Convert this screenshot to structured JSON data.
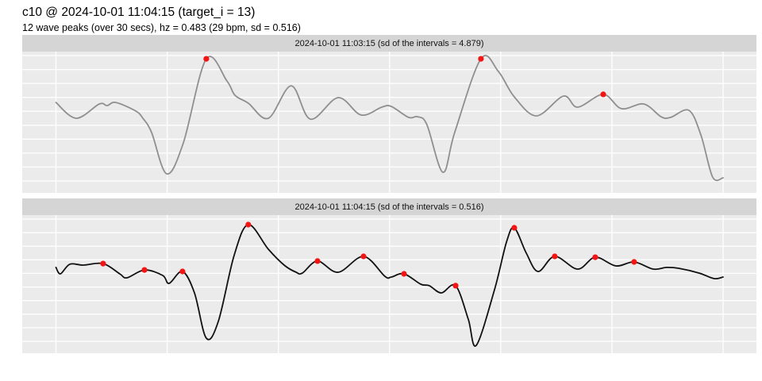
{
  "header": {
    "title": "c10 @ 2024-10-01 11:04:15 (target_i = 13)",
    "subtitle": "12 wave peaks (over 30 secs), hz = 0.483 (29 bpm, sd = 0.516)"
  },
  "colors": {
    "panel_bg": "#ebebeb",
    "strip_bg": "#d5d5d5",
    "grid": "#ffffff",
    "top_line": "#8f8f8f",
    "bottom_line": "#111111",
    "peak_dot": "#f51414",
    "text": "#000000"
  },
  "chart_data": [
    {
      "type": "line",
      "title": "2024-10-01 11:03:15 (sd of the intervals = 4.879)",
      "xlabel": "",
      "ylabel": "",
      "x_units": "seconds",
      "y_units": "normalized amplitude (0 = panel bottom, 1 = panel top)",
      "xlim": [
        0,
        30
      ],
      "x_gridlines_sec": [
        0,
        5,
        10,
        15,
        20,
        25,
        30
      ],
      "h_gridline_count": 10,
      "grid": true,
      "legend": "none",
      "line_color_key": "top_line",
      "points": [
        [
          0,
          0.64
        ],
        [
          0.91,
          0.528
        ],
        [
          1.95,
          0.629
        ],
        [
          2.3,
          0.618
        ],
        [
          2.69,
          0.64
        ],
        [
          3.59,
          0.579
        ],
        [
          3.91,
          0.528
        ],
        [
          4.3,
          0.427
        ],
        [
          4.98,
          0.135
        ],
        [
          5.73,
          0.354
        ],
        [
          6.76,
          0.949
        ],
        [
          7.69,
          0.792
        ],
        [
          8.05,
          0.691
        ],
        [
          8.65,
          0.635
        ],
        [
          9.55,
          0.528
        ],
        [
          10.58,
          0.758
        ],
        [
          11.44,
          0.522
        ],
        [
          12.69,
          0.674
        ],
        [
          13.72,
          0.551
        ],
        [
          14.65,
          0.607
        ],
        [
          15.08,
          0.612
        ],
        [
          15.86,
          0.534
        ],
        [
          16.26,
          0.539
        ],
        [
          16.68,
          0.483
        ],
        [
          17.4,
          0.146
        ],
        [
          17.93,
          0.427
        ],
        [
          19.11,
          0.949
        ],
        [
          19.89,
          0.86
        ],
        [
          20.61,
          0.68
        ],
        [
          21.61,
          0.545
        ],
        [
          22.82,
          0.685
        ],
        [
          23.46,
          0.607
        ],
        [
          24.61,
          0.697
        ],
        [
          25.43,
          0.596
        ],
        [
          26.43,
          0.629
        ],
        [
          27.21,
          0.539
        ],
        [
          27.64,
          0.534
        ],
        [
          28.46,
          0.584
        ],
        [
          29.0,
          0.41
        ],
        [
          29.53,
          0.112
        ],
        [
          30.0,
          0.107
        ]
      ],
      "peaks": [
        [
          6.76,
          0.949
        ],
        [
          19.11,
          0.949
        ],
        [
          24.61,
          0.697
        ]
      ]
    },
    {
      "type": "line",
      "title": "2024-10-01 11:04:15 (sd of the intervals = 0.516)",
      "xlabel": "",
      "ylabel": "",
      "x_units": "seconds",
      "y_units": "normalized amplitude (0 = panel bottom, 1 = panel top)",
      "xlim": [
        0,
        30
      ],
      "x_gridlines_sec": [
        0,
        5,
        10,
        15,
        20,
        25,
        30
      ],
      "h_gridline_count": 10,
      "grid": true,
      "legend": "none",
      "line_color_key": "bottom_line",
      "points": [
        [
          0,
          0.621
        ],
        [
          0.2,
          0.575
        ],
        [
          0.62,
          0.644
        ],
        [
          1.23,
          0.638
        ],
        [
          2.12,
          0.649
        ],
        [
          2.87,
          0.575
        ],
        [
          3.19,
          0.546
        ],
        [
          3.98,
          0.603
        ],
        [
          4.8,
          0.563
        ],
        [
          5.09,
          0.506
        ],
        [
          5.69,
          0.592
        ],
        [
          6.23,
          0.437
        ],
        [
          6.76,
          0.109
        ],
        [
          7.3,
          0.23
        ],
        [
          8.01,
          0.707
        ],
        [
          8.65,
          0.931
        ],
        [
          9.55,
          0.753
        ],
        [
          10.26,
          0.638
        ],
        [
          10.8,
          0.586
        ],
        [
          11.08,
          0.58
        ],
        [
          11.76,
          0.667
        ],
        [
          12.69,
          0.586
        ],
        [
          13.83,
          0.701
        ],
        [
          14.79,
          0.557
        ],
        [
          15.08,
          0.552
        ],
        [
          15.65,
          0.575
        ],
        [
          16.4,
          0.5
        ],
        [
          16.79,
          0.489
        ],
        [
          17.33,
          0.437
        ],
        [
          17.97,
          0.489
        ],
        [
          18.54,
          0.247
        ],
        [
          18.9,
          0.057
        ],
        [
          19.72,
          0.46
        ],
        [
          20.26,
          0.805
        ],
        [
          20.61,
          0.908
        ],
        [
          21.15,
          0.724
        ],
        [
          21.68,
          0.592
        ],
        [
          22.43,
          0.701
        ],
        [
          23.46,
          0.609
        ],
        [
          24.25,
          0.695
        ],
        [
          25.18,
          0.632
        ],
        [
          26.0,
          0.661
        ],
        [
          26.86,
          0.609
        ],
        [
          27.46,
          0.621
        ],
        [
          28.0,
          0.615
        ],
        [
          28.93,
          0.58
        ],
        [
          29.6,
          0.54
        ],
        [
          30.0,
          0.552
        ]
      ],
      "peaks": [
        [
          2.12,
          0.649
        ],
        [
          3.98,
          0.603
        ],
        [
          5.69,
          0.592
        ],
        [
          8.65,
          0.931
        ],
        [
          11.76,
          0.667
        ],
        [
          13.83,
          0.701
        ],
        [
          15.65,
          0.575
        ],
        [
          17.97,
          0.489
        ],
        [
          20.61,
          0.908
        ],
        [
          22.43,
          0.701
        ],
        [
          24.25,
          0.695
        ],
        [
          26.0,
          0.661
        ]
      ]
    }
  ]
}
